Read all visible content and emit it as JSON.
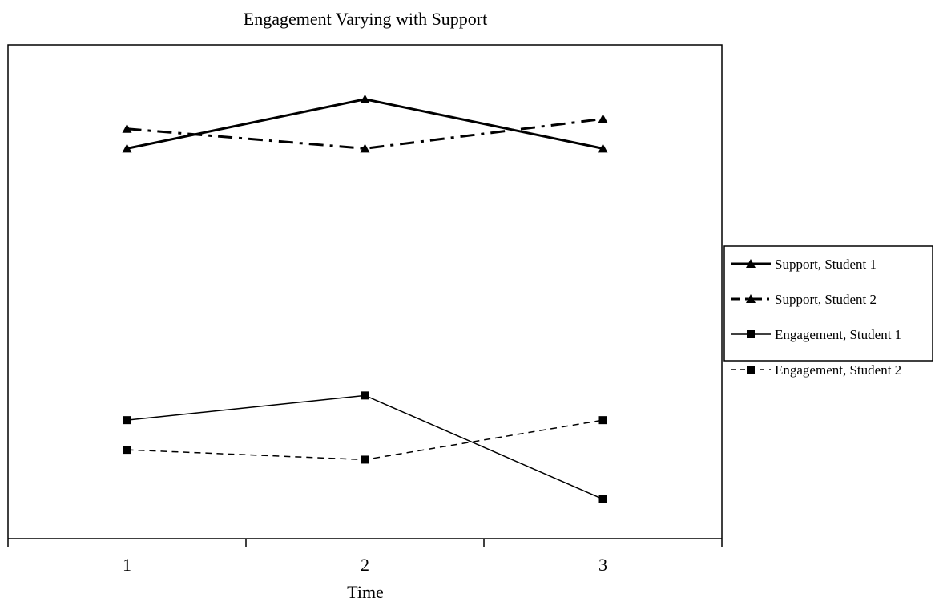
{
  "chart_data": {
    "type": "line",
    "title": "Engagement Varying with Support",
    "xlabel": "Time",
    "ylabel": "",
    "x": [
      1,
      2,
      3
    ],
    "xlim": [
      0.5,
      3.5
    ],
    "ylim": [
      0,
      100
    ],
    "grid": false,
    "legend_position": "right",
    "series": [
      {
        "name": "Support, Student 1",
        "values": [
          79,
          89,
          79
        ],
        "marker": "triangle",
        "line": "solid-thick"
      },
      {
        "name": "Support, Student 2",
        "values": [
          83,
          79,
          85
        ],
        "marker": "triangle",
        "line": "dashdot-thick"
      },
      {
        "name": "Engagement, Student 1",
        "values": [
          24,
          29,
          8
        ],
        "marker": "square",
        "line": "solid-thin"
      },
      {
        "name": "Engagement, Student 2",
        "values": [
          18,
          16,
          24
        ],
        "marker": "square",
        "line": "dashed-thin"
      }
    ]
  }
}
